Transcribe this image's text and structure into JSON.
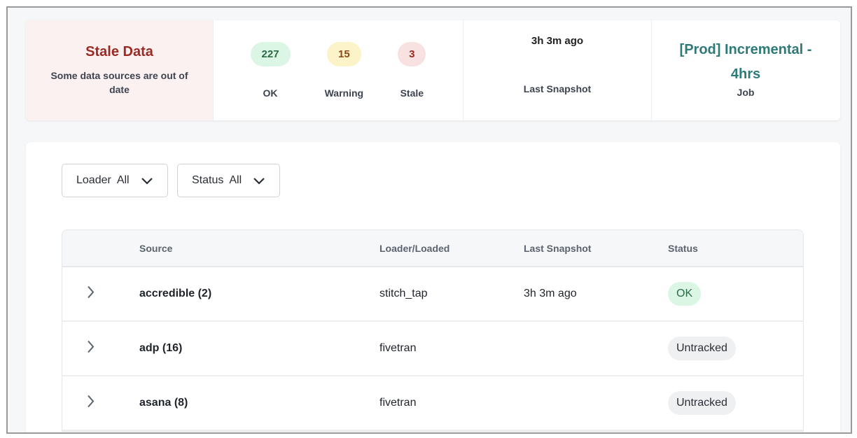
{
  "summary": {
    "alert": {
      "title": "Stale Data",
      "message": "Some data sources are out of date"
    },
    "counts": [
      {
        "value": "227",
        "label": "OK",
        "bg": "#dcf6e6",
        "fg": "#2a6a45"
      },
      {
        "value": "15",
        "label": "Warning",
        "bg": "#fdf3c8",
        "fg": "#8a4a1a"
      },
      {
        "value": "3",
        "label": "Stale",
        "bg": "#f8e1e1",
        "fg": "#9b2a24"
      }
    ],
    "last_snapshot": {
      "value": "3h 3m ago",
      "label": "Last Snapshot"
    },
    "job": {
      "value": "[Prod] Incremental - 4hrs",
      "label": "Job"
    }
  },
  "filters": [
    {
      "label": "Loader",
      "value": "All"
    },
    {
      "label": "Status",
      "value": "All"
    }
  ],
  "table": {
    "headers": [
      "Source",
      "Loader/Loaded",
      "Last Snapshot",
      "Status"
    ],
    "rows": [
      {
        "source": "accredible (2)",
        "loader": "stitch_tap",
        "last_snapshot": "3h 3m ago",
        "status": "OK",
        "status_bg": "#dcf6e6",
        "status_fg": "#2a6a45"
      },
      {
        "source": "adp (16)",
        "loader": "fivetran",
        "last_snapshot": "",
        "status": "Untracked",
        "status_bg": "#eff0f2",
        "status_fg": "#2a2f36"
      },
      {
        "source": "asana (8)",
        "loader": "fivetran",
        "last_snapshot": "",
        "status": "Untracked",
        "status_bg": "#eff0f2",
        "status_fg": "#2a2f36"
      }
    ]
  }
}
